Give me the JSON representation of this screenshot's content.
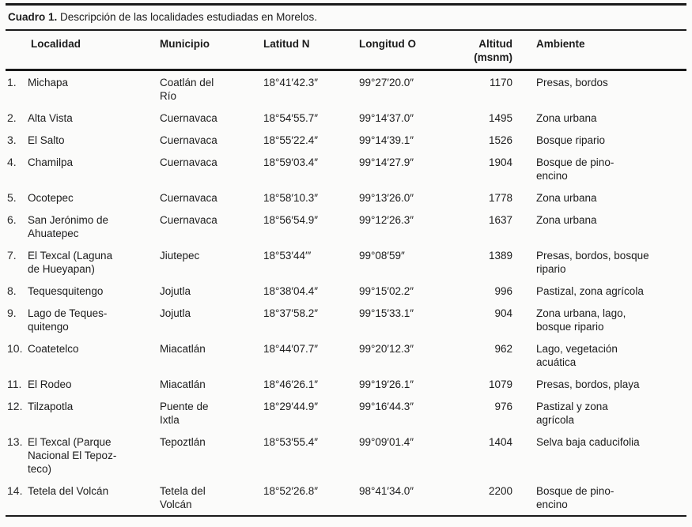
{
  "caption": {
    "label": "Cuadro 1.",
    "text": " Descripción de las localidades estudiadas en Morelos."
  },
  "columns": [
    {
      "key": "localidad",
      "label": "Localidad"
    },
    {
      "key": "municipio",
      "label": "Municipio"
    },
    {
      "key": "latitud",
      "label": "Latitud N"
    },
    {
      "key": "longitud",
      "label": "Longitud O"
    },
    {
      "key": "altitud",
      "label": "Altitud\n(msnm)"
    },
    {
      "key": "ambiente",
      "label": "Ambiente"
    }
  ],
  "rows": [
    {
      "num": "1.",
      "localidad": "Michapa",
      "municipio": "Coatlán del\nRío",
      "latitud": "18°41′42.3″",
      "longitud": "99°27′20.0″",
      "altitud": "1170",
      "ambiente": "Presas, bordos"
    },
    {
      "num": "2.",
      "localidad": "Alta Vista",
      "municipio": "Cuernavaca",
      "latitud": "18°54′55.7″",
      "longitud": "99°14′37.0″",
      "altitud": "1495",
      "ambiente": "Zona urbana"
    },
    {
      "num": "3.",
      "localidad": "El Salto",
      "municipio": "Cuernavaca",
      "latitud": "18°55′22.4″",
      "longitud": "99°14′39.1″",
      "altitud": "1526",
      "ambiente": "Bosque ripario"
    },
    {
      "num": "4.",
      "localidad": "Chamilpa",
      "municipio": "Cuernavaca",
      "latitud": "18°59′03.4″",
      "longitud": "99°14′27.9″",
      "altitud": "1904",
      "ambiente": "Bosque de pino-\nencino"
    },
    {
      "num": "5.",
      "localidad": "Ocotepec",
      "municipio": "Cuernavaca",
      "latitud": "18°58′10.3″",
      "longitud": "99°13′26.0″",
      "altitud": "1778",
      "ambiente": "Zona urbana"
    },
    {
      "num": "6.",
      "localidad": "San Jerónimo de\nAhuatepec",
      "municipio": "Cuernavaca",
      "latitud": "18°56′54.9″",
      "longitud": "99°12′26.3″",
      "altitud": "1637",
      "ambiente": "Zona urbana"
    },
    {
      "num": "7.",
      "localidad": "El Texcal (Laguna\nde Hueyapan)",
      "municipio": "Jiutepec",
      "latitud": "18°53′44′″",
      "longitud": "99°08′59″",
      "altitud": "1389",
      "ambiente": "Presas, bordos, bosque\nripario"
    },
    {
      "num": "8.",
      "localidad": "Tequesquitengo",
      "municipio": "Jojutla",
      "latitud": "18°38′04.4″",
      "longitud": "99°15′02.2″",
      "altitud": "996",
      "ambiente": "Pastizal, zona agrícola"
    },
    {
      "num": "9.",
      "localidad": "Lago de Teques-\nquitengo",
      "municipio": "Jojutla",
      "latitud": "18°37′58.2″",
      "longitud": "99°15′33.1″",
      "altitud": "904",
      "ambiente": "Zona urbana, lago,\nbosque ripario"
    },
    {
      "num": "10.",
      "localidad": "Coatetelco",
      "municipio": "Miacatlán",
      "latitud": "18°44′07.7″",
      "longitud": "99°20′12.3″",
      "altitud": "962",
      "ambiente": "Lago, vegetación\nacuática"
    },
    {
      "num": "11.",
      "localidad": "El Rodeo",
      "municipio": "Miacatlán",
      "latitud": "18°46′26.1″",
      "longitud": "99°19′26.1″",
      "altitud": "1079",
      "ambiente": "Presas, bordos, playa"
    },
    {
      "num": "12.",
      "localidad": "Tilzapotla",
      "municipio": "Puente de\nIxtla",
      "latitud": "18°29′44.9″",
      "longitud": "99°16′44.3″",
      "altitud": "976",
      "ambiente": "Pastizal y zona\nagrícola"
    },
    {
      "num": "13.",
      "localidad": "El Texcal (Parque\nNacional El Tepoz-\nteco)",
      "municipio": "Tepoztlán",
      "latitud": "18°53′55.4″",
      "longitud": "99°09′01.4″",
      "altitud": "1404",
      "ambiente": "Selva baja caducifolia"
    },
    {
      "num": "14.",
      "localidad": "Tetela del Volcán",
      "municipio": "Tetela del\nVolcán",
      "latitud": "18°52′26.8″",
      "longitud": "98°41′34.0″",
      "altitud": "2200",
      "ambiente": "Bosque de pino-\nencino"
    }
  ]
}
